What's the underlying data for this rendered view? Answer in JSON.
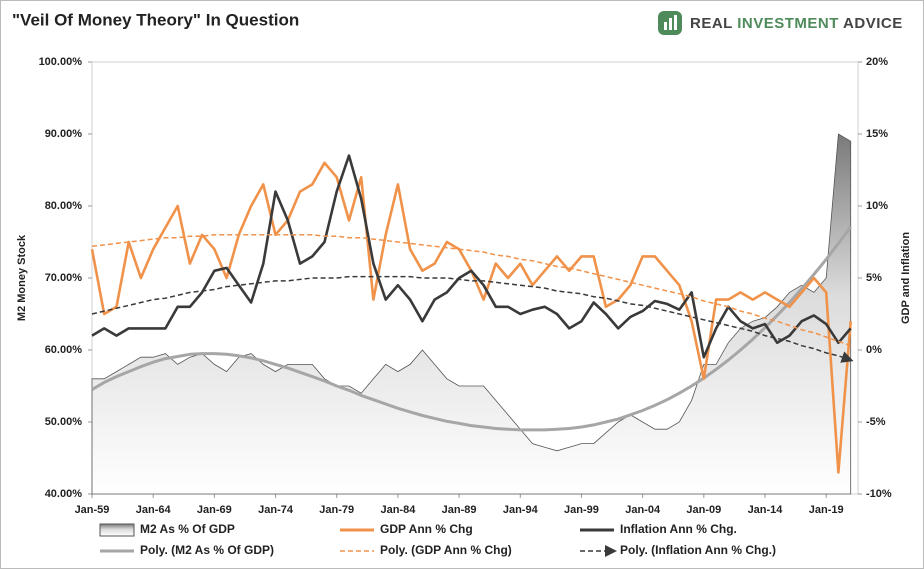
{
  "brand": [
    "REAL",
    "INVESTMENT",
    "ADVICE"
  ],
  "chart_data": {
    "type": "line",
    "title": "\"Veil Of Money Theory\" In Question",
    "y_label": "M2 Money Stock",
    "y2_label": "GDP and Inflation",
    "categories": [
      "Jan-59",
      null,
      null,
      null,
      null,
      "Jan-64",
      null,
      null,
      null,
      null,
      "Jan-69",
      null,
      null,
      null,
      null,
      "Jan-74",
      null,
      null,
      null,
      null,
      "Jan-79",
      null,
      null,
      null,
      null,
      "Jan-84",
      null,
      null,
      null,
      null,
      "Jan-89",
      null,
      null,
      null,
      null,
      "Jan-94",
      null,
      null,
      null,
      null,
      "Jan-99",
      null,
      null,
      null,
      null,
      "Jan-04",
      null,
      null,
      null,
      null,
      "Jan-09",
      null,
      null,
      null,
      null,
      "Jan-14",
      null,
      null,
      null,
      null,
      "Jan-19",
      null,
      null
    ],
    "ylim": [
      40,
      100
    ],
    "yticks": [
      {
        "value": 40,
        "label": "40.00%"
      },
      {
        "value": 50,
        "label": "50.00%"
      },
      {
        "value": 60,
        "label": "60.00%"
      },
      {
        "value": 70,
        "label": "70.00%"
      },
      {
        "value": 80,
        "label": "80.00%"
      },
      {
        "value": 90,
        "label": "90.00%"
      },
      {
        "value": 100,
        "label": "100.00%"
      }
    ],
    "y2lim": [
      -10,
      20
    ],
    "y2ticks": [
      {
        "value": -10,
        "label": "-10%"
      },
      {
        "value": -5,
        "label": "-5%"
      },
      {
        "value": 0,
        "label": "0%"
      },
      {
        "value": 5,
        "label": "5%"
      },
      {
        "value": 10,
        "label": "10%"
      },
      {
        "value": 15,
        "label": "15%"
      },
      {
        "value": 20,
        "label": "20%"
      }
    ],
    "series": [
      {
        "name": "M2 As % Of GDP",
        "type": "area",
        "color": "#9a9a9a",
        "axis": "y",
        "values": [
          56,
          56,
          57,
          58,
          59,
          59,
          59.5,
          58,
          59,
          59.5,
          58,
          57,
          59,
          59.5,
          58,
          57,
          58,
          58,
          58,
          56,
          55,
          55,
          54,
          56,
          58,
          57,
          58,
          60,
          58,
          56,
          55,
          55,
          55,
          53,
          51,
          49,
          47,
          46.5,
          46,
          46.5,
          47,
          47,
          48.5,
          50,
          51,
          50,
          49,
          49,
          50,
          53,
          58,
          58,
          61,
          63,
          64,
          64.5,
          66,
          68,
          69,
          68,
          70,
          90,
          89
        ]
      },
      {
        "name": "GDP Ann % Chg",
        "type": "line",
        "color": "#f0924a",
        "axis": "y2",
        "values": [
          7,
          2.5,
          3,
          7.5,
          5,
          7,
          8.5,
          10,
          6,
          8,
          7,
          5,
          8,
          10,
          11.5,
          8,
          9,
          11,
          11.5,
          13,
          12,
          9,
          12,
          3.5,
          8,
          11.5,
          7,
          5.5,
          6,
          7.5,
          7,
          5.5,
          3.5,
          6,
          5,
          6,
          4.5,
          5.5,
          6.5,
          5.5,
          6.5,
          6.5,
          3,
          3.5,
          4.5,
          6.5,
          6.5,
          5.5,
          4.5,
          2,
          -2,
          3.5,
          3.5,
          4,
          3.5,
          4,
          3.5,
          3,
          4,
          5,
          4,
          -8.5,
          2
        ]
      },
      {
        "name": "Inflation Ann % Chg.",
        "type": "line",
        "color": "#3a3a3a",
        "axis": "y2",
        "values": [
          1,
          1.5,
          1,
          1.5,
          1.5,
          1.5,
          1.5,
          3,
          3,
          4,
          5.5,
          5.7,
          4.5,
          3.3,
          6,
          11,
          9,
          6,
          6.5,
          7.5,
          11,
          13.5,
          10.5,
          6,
          3.5,
          4.5,
          3.5,
          2,
          3.5,
          4,
          5,
          5.5,
          4.5,
          3,
          3,
          2.5,
          2.8,
          3,
          2.5,
          1.5,
          2,
          3.3,
          2.5,
          1.5,
          2.3,
          2.7,
          3.4,
          3.2,
          2.8,
          4,
          -0.5,
          1.5,
          3,
          2,
          1.5,
          1.8,
          0.5,
          1,
          2,
          2.4,
          1.8,
          0.5,
          1.5
        ]
      },
      {
        "name": "Poly. (M2 As % Of GDP)",
        "type": "line",
        "color": "#a6a6a6",
        "axis": "y",
        "values": [
          54.5,
          55.5,
          56.3,
          57,
          57.7,
          58.3,
          58.8,
          59.1,
          59.4,
          59.5,
          59.5,
          59.4,
          59.2,
          58.9,
          58.5,
          58,
          57.5,
          56.9,
          56.3,
          55.7,
          55,
          54.4,
          53.7,
          53.1,
          52.5,
          51.9,
          51.4,
          50.9,
          50.5,
          50.1,
          49.8,
          49.5,
          49.3,
          49.1,
          49,
          48.9,
          48.9,
          48.9,
          49,
          49.1,
          49.3,
          49.6,
          50,
          50.4,
          51,
          51.6,
          52.3,
          53.1,
          54,
          55,
          56.1,
          57.3,
          58.6,
          60,
          61.5,
          63.1,
          64.8,
          66.6,
          68.5,
          70.5,
          72.6,
          74.8,
          77.1
        ]
      },
      {
        "name": "Poly. (GDP Ann % Chg)",
        "type": "line",
        "dashed": true,
        "color": "#f0924a",
        "axis": "y2",
        "values": [
          7.2,
          7.3,
          7.4,
          7.5,
          7.6,
          7.7,
          7.8,
          7.8,
          7.9,
          7.9,
          8,
          8,
          8,
          8,
          8,
          8,
          8,
          8,
          8,
          7.9,
          7.9,
          7.8,
          7.8,
          7.7,
          7.6,
          7.5,
          7.4,
          7.3,
          7.2,
          7.1,
          7,
          6.9,
          6.8,
          6.6,
          6.5,
          6.3,
          6.2,
          6,
          5.8,
          5.7,
          5.5,
          5.3,
          5.1,
          4.9,
          4.7,
          4.5,
          4.3,
          4.1,
          3.9,
          3.7,
          3.4,
          3.2,
          3,
          2.7,
          2.5,
          2.2,
          2,
          1.7,
          1.4,
          1.2,
          0.9,
          0.6,
          0.3
        ]
      },
      {
        "name": "Poly. (Inflation Ann % Chg.)",
        "type": "line",
        "dashed": true,
        "arrow": true,
        "color": "#3a3a3a",
        "axis": "y2",
        "values": [
          2.5,
          2.7,
          2.9,
          3.1,
          3.3,
          3.5,
          3.6,
          3.8,
          4,
          4.1,
          4.2,
          4.4,
          4.5,
          4.6,
          4.7,
          4.8,
          4.8,
          4.9,
          5,
          5,
          5,
          5.1,
          5.1,
          5.1,
          5.1,
          5.1,
          5.1,
          5,
          5,
          5,
          4.9,
          4.8,
          4.8,
          4.7,
          4.6,
          4.5,
          4.4,
          4.3,
          4.1,
          4,
          3.9,
          3.7,
          3.6,
          3.4,
          3.2,
          3.1,
          2.9,
          2.7,
          2.5,
          2.3,
          2.1,
          1.9,
          1.7,
          1.5,
          1.3,
          1,
          0.8,
          0.6,
          0.3,
          0.1,
          -0.2,
          -0.4,
          -0.7
        ]
      }
    ]
  }
}
